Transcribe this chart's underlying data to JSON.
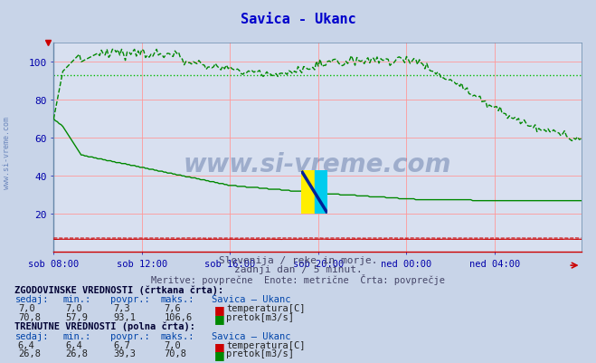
{
  "title": "Savica - Ukanc",
  "title_color": "#0000cc",
  "bg_color": "#c8d4e8",
  "plot_bg_color": "#d8e0f0",
  "grid_color": "#ff9999",
  "xlabel_color": "#0000aa",
  "ylabel_color": "#0000aa",
  "x_tick_labels": [
    "sob 08:00",
    "sob 12:00",
    "sob 16:00",
    "sob 20:00",
    "ned 00:00",
    "ned 04:00"
  ],
  "x_tick_positions": [
    0,
    48,
    96,
    144,
    192,
    240
  ],
  "ylim": [
    0,
    110
  ],
  "yticks": [
    20,
    40,
    60,
    80,
    100
  ],
  "total_points": 288,
  "subtitle1": "Slovenija / reke in morje.",
  "subtitle2": "zadnji dan / 5 minut.",
  "subtitle3": "Meritve: povprečne  Enote: metrične  Črta: povprečje",
  "subtitle_color": "#444466",
  "watermark": "www.si-vreme.com",
  "watermark_color": "#1a3a7a",
  "watermark_alpha": 0.3,
  "hist_label": "ZGODOVINSKE VREDNOSTI (črtkana črta):",
  "curr_label": "TRENUTNE VREDNOSTI (polna črta):",
  "table_header": [
    "sedaj:",
    "min.:",
    "povpr.:",
    "maks.:",
    "Savica – Ukanc"
  ],
  "hist_temp": [
    7.0,
    7.0,
    7.3,
    7.6
  ],
  "hist_flow": [
    70.8,
    57.9,
    93.1,
    106.6
  ],
  "curr_temp": [
    6.4,
    6.4,
    6.7,
    7.0
  ],
  "curr_flow": [
    26.8,
    26.8,
    39.3,
    70.8
  ],
  "temp_color": "#cc0000",
  "flow_color": "#008800",
  "temp_label": "temperatura[C]",
  "flow_label": "pretok[m3/s]",
  "avg_flow_line": 93.1,
  "hline_color": "#00bb00"
}
